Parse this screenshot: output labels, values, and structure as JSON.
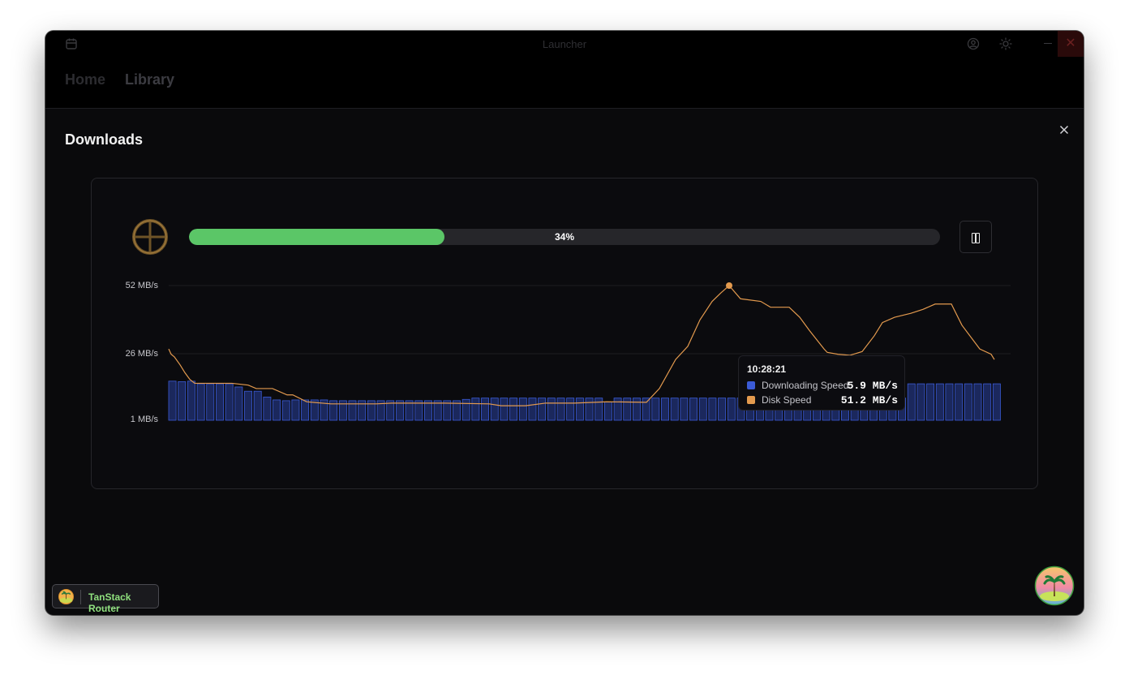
{
  "window": {
    "title": "Launcher"
  },
  "nav": {
    "items": [
      {
        "label": "Home"
      },
      {
        "label": "Library"
      }
    ]
  },
  "panel": {
    "title": "Downloads"
  },
  "download": {
    "progress": 0.34,
    "progress_label": "34%"
  },
  "chart_data": {
    "type": "bar",
    "y_axis_labels": [
      "52 MB/s",
      "26 MB/s",
      "1 MB/s"
    ],
    "ylim": [
      1,
      52
    ],
    "grid": true,
    "series": [
      {
        "name": "Downloading Speed",
        "type": "bar",
        "color": "#3b5bd6",
        "values": [
          15.8,
          15.6,
          15.8,
          14.8,
          14.8,
          14.8,
          14.8,
          13.6,
          12.0,
          12.0,
          9.8,
          8.7,
          8.4,
          8.7,
          8.7,
          8.7,
          8.7,
          8.4,
          8.4,
          8.4,
          8.4,
          8.4,
          8.4,
          8.4,
          8.4,
          8.4,
          8.4,
          8.4,
          8.4,
          8.4,
          8.4,
          8.9,
          9.4,
          9.4,
          9.4,
          9.4,
          9.4,
          9.4,
          9.4,
          9.4,
          9.4,
          9.4,
          9.4,
          9.4,
          9.4,
          9.4,
          7.9,
          9.4,
          9.4,
          9.4,
          9.4,
          9.4,
          9.4,
          9.4,
          9.4,
          9.4,
          9.4,
          9.4,
          9.4,
          9.4,
          9.4,
          9.4,
          9.4,
          9.4,
          9.4,
          9.4,
          9.4,
          9.4,
          9.4,
          9.4,
          9.4,
          9.4,
          9.4,
          9.4,
          9.4,
          9.4,
          9.4,
          9.4,
          14.8,
          14.8,
          14.8,
          14.8,
          14.8,
          14.8,
          14.8,
          14.8,
          14.8,
          14.8
        ]
      },
      {
        "name": "Disk Speed",
        "type": "line",
        "color": "#e39a4e",
        "points": [
          [
            0,
            28.0
          ],
          [
            3,
            26.0
          ],
          [
            7,
            25.0
          ],
          [
            14,
            22.0
          ],
          [
            20,
            19.0
          ],
          [
            26,
            16.5
          ],
          [
            32,
            15.0
          ],
          [
            50,
            15.0
          ],
          [
            78,
            15.0
          ],
          [
            98,
            14.3
          ],
          [
            108,
            13.0
          ],
          [
            128,
            13.0
          ],
          [
            146,
            10.6
          ],
          [
            153,
            10.6
          ],
          [
            170,
            8.0
          ],
          [
            200,
            7.2
          ],
          [
            256,
            7.2
          ],
          [
            275,
            7.5
          ],
          [
            340,
            7.5
          ],
          [
            395,
            7.2
          ],
          [
            410,
            6.5
          ],
          [
            440,
            6.5
          ],
          [
            465,
            7.5
          ],
          [
            500,
            7.5
          ],
          [
            525,
            7.8
          ],
          [
            540,
            8.0
          ],
          [
            589,
            7.8
          ],
          [
            605,
            13.0
          ],
          [
            625,
            24.0
          ],
          [
            640,
            29.0
          ],
          [
            655,
            39.0
          ],
          [
            670,
            46.0
          ],
          [
            680,
            49.0
          ],
          [
            691,
            52.0
          ],
          [
            705,
            47.0
          ],
          [
            730,
            46.0
          ],
          [
            742,
            43.8
          ],
          [
            765,
            43.8
          ],
          [
            778,
            40.0
          ],
          [
            790,
            35.0
          ],
          [
            808,
            28.0
          ],
          [
            812,
            26.7
          ],
          [
            825,
            26.0
          ],
          [
            840,
            25.6
          ],
          [
            855,
            27.0
          ],
          [
            870,
            33.0
          ],
          [
            880,
            38.0
          ],
          [
            895,
            40.0
          ],
          [
            915,
            41.5
          ],
          [
            930,
            43.0
          ],
          [
            945,
            45.0
          ],
          [
            965,
            45.0
          ],
          [
            978,
            37.0
          ],
          [
            1000,
            28.0
          ],
          [
            1014,
            26.0
          ],
          [
            1018,
            24.0
          ]
        ]
      }
    ],
    "tooltip": {
      "time": "10:28:21",
      "entries": [
        {
          "name": "Downloading Speed",
          "value": "5.9 MB/s"
        },
        {
          "name": "Disk Speed",
          "value": "51.2 MB/s"
        }
      ]
    }
  },
  "devtools": {
    "router_label": "TanStack Router"
  },
  "icons": {
    "app": "calendar-icon",
    "account": "user-circle-icon",
    "theme": "sun-icon",
    "close": "close-icon",
    "game": "crosshair-icon",
    "pause": "pause-icon"
  },
  "colors": {
    "accent_progress": "#5bc667",
    "download_bar": "#3b5bd6",
    "disk_line": "#e39a4e",
    "router_label": "#8fe07e"
  }
}
